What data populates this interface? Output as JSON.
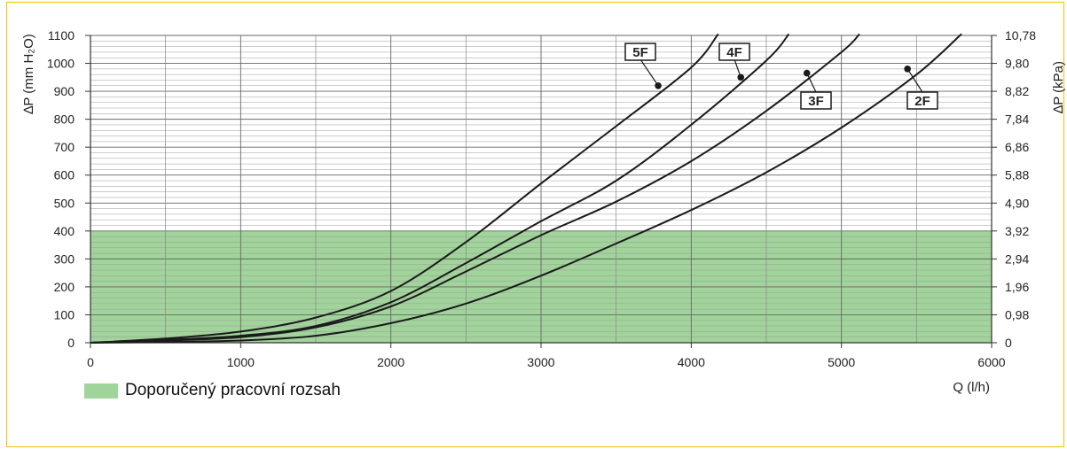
{
  "chart_data": {
    "type": "line",
    "xlabel": "Q (l/h)",
    "ylabel": "∆P (mm H₂O)",
    "y2label": "∆P (kPa)",
    "xlim": [
      0,
      6000
    ],
    "ylim": [
      0,
      1100
    ],
    "x_ticks": [
      "0",
      "1000",
      "2000",
      "3000",
      "4000",
      "5000",
      "6000"
    ],
    "y_ticks": [
      "0",
      "100",
      "200",
      "300",
      "400",
      "500",
      "600",
      "700",
      "800",
      "900",
      "1000",
      "1100"
    ],
    "y2_ticks": [
      "0",
      "0,98",
      "1,96",
      "2,94",
      "3,92",
      "4,90",
      "5,88",
      "6,86",
      "7,84",
      "8,82",
      "9,80",
      "10,78"
    ],
    "grid": true,
    "recommended_range": {
      "label": "Doporučený pracovní rozsah",
      "ymin": 0,
      "ymax": 400,
      "color": "#a1d49b"
    },
    "series": [
      {
        "name": "5F",
        "marker": {
          "x": 3780,
          "y": 920
        },
        "x": [
          0,
          500,
          1000,
          1500,
          2000,
          2500,
          3000,
          3500,
          4000,
          4180
        ],
        "y": [
          0,
          15,
          40,
          90,
          185,
          360,
          570,
          775,
          985,
          1105
        ]
      },
      {
        "name": "4F",
        "marker": {
          "x": 4330,
          "y": 950
        },
        "x": [
          0,
          500,
          1000,
          1500,
          2000,
          2500,
          3000,
          3500,
          4000,
          4500,
          4650
        ],
        "y": [
          0,
          10,
          25,
          60,
          145,
          285,
          435,
          580,
          780,
          1010,
          1105
        ]
      },
      {
        "name": "3F",
        "marker": {
          "x": 4770,
          "y": 965
        },
        "x": [
          0,
          500,
          1000,
          1500,
          2000,
          2500,
          3000,
          3500,
          4000,
          4500,
          5000,
          5120
        ],
        "y": [
          0,
          8,
          20,
          55,
          130,
          255,
          385,
          505,
          650,
          830,
          1040,
          1105
        ]
      },
      {
        "name": "2F",
        "marker": {
          "x": 5440,
          "y": 980
        },
        "x": [
          0,
          500,
          1000,
          1500,
          2000,
          2500,
          3000,
          3500,
          4000,
          4500,
          5000,
          5500,
          5800
        ],
        "y": [
          0,
          3,
          8,
          25,
          70,
          140,
          240,
          355,
          475,
          610,
          770,
          960,
          1105
        ]
      }
    ]
  }
}
